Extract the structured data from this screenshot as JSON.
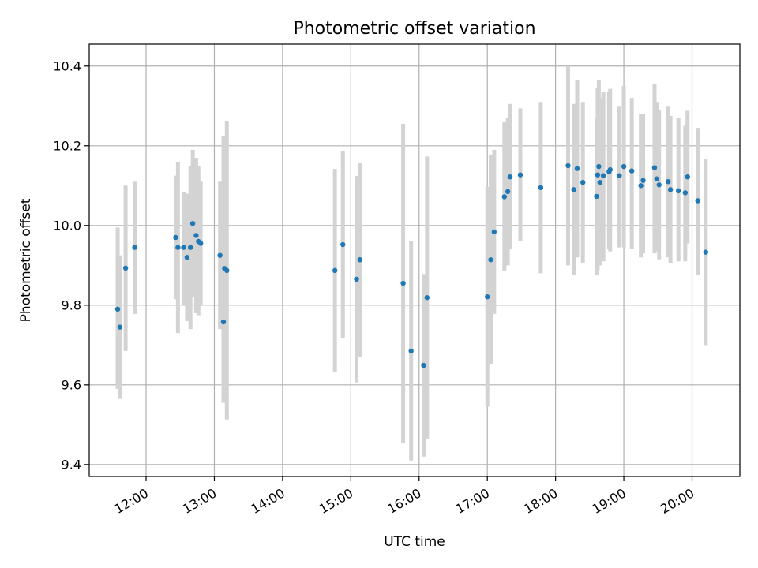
{
  "chart_data": {
    "type": "scatter",
    "title": "Photometric offset variation",
    "xlabel": "UTC time",
    "ylabel": "Photometric offset",
    "x_unit": "UTC time of day (HH:MM)",
    "xlim": [
      "11:10",
      "20:42"
    ],
    "ylim": [
      9.37,
      10.455
    ],
    "x_ticks": [
      "12:00",
      "13:00",
      "14:00",
      "15:00",
      "16:00",
      "17:00",
      "18:00",
      "19:00",
      "20:00"
    ],
    "y_ticks": [
      9.4,
      9.6,
      9.8,
      10.0,
      10.2,
      10.4
    ],
    "y_tick_labels": [
      "9.4",
      "9.6",
      "9.8",
      "10.0",
      "10.2",
      "10.4"
    ],
    "grid": true,
    "colors": {
      "points": "#1f77b4",
      "error_bars": "#d3d3d3",
      "grid": "#b0b0b0"
    },
    "series": [
      {
        "marker": "dot",
        "points": [
          {
            "x": "11:35",
            "y": 9.79,
            "ylow": 9.59,
            "yhigh": 9.995
          },
          {
            "x": "11:37",
            "y": 9.745,
            "ylow": 9.565,
            "yhigh": 9.925
          },
          {
            "x": "11:42",
            "y": 9.893,
            "ylow": 9.685,
            "yhigh": 10.1
          },
          {
            "x": "11:50",
            "y": 9.945,
            "ylow": 9.778,
            "yhigh": 10.11
          },
          {
            "x": "12:26",
            "y": 9.97,
            "ylow": 9.815,
            "yhigh": 10.125
          },
          {
            "x": "12:28",
            "y": 9.945,
            "ylow": 9.73,
            "yhigh": 10.16
          },
          {
            "x": "12:33",
            "y": 9.945,
            "ylow": 9.8,
            "yhigh": 10.085
          },
          {
            "x": "12:36",
            "y": 9.92,
            "ylow": 9.76,
            "yhigh": 10.08
          },
          {
            "x": "12:39",
            "y": 9.945,
            "ylow": 9.74,
            "yhigh": 10.15
          },
          {
            "x": "12:41",
            "y": 10.005,
            "ylow": 9.82,
            "yhigh": 10.19
          },
          {
            "x": "12:44",
            "y": 9.975,
            "ylow": 9.78,
            "yhigh": 10.17
          },
          {
            "x": "12:46",
            "y": 9.96,
            "ylow": 9.775,
            "yhigh": 10.15
          },
          {
            "x": "12:48",
            "y": 9.955,
            "ylow": 9.8,
            "yhigh": 10.11
          },
          {
            "x": "13:05",
            "y": 9.925,
            "ylow": 9.74,
            "yhigh": 10.11
          },
          {
            "x": "13:08",
            "y": 9.758,
            "ylow": 9.555,
            "yhigh": 10.225
          },
          {
            "x": "13:09",
            "y": 9.892,
            "ylow": 9.565,
            "yhigh": 10.22
          },
          {
            "x": "13:11",
            "y": 9.887,
            "ylow": 9.513,
            "yhigh": 10.262
          },
          {
            "x": "14:46",
            "y": 9.887,
            "ylow": 9.632,
            "yhigh": 10.142
          },
          {
            "x": "14:53",
            "y": 9.952,
            "ylow": 9.718,
            "yhigh": 10.186
          },
          {
            "x": "15:05",
            "y": 9.865,
            "ylow": 9.606,
            "yhigh": 10.124
          },
          {
            "x": "15:08",
            "y": 9.914,
            "ylow": 9.67,
            "yhigh": 10.158
          },
          {
            "x": "15:46",
            "y": 9.855,
            "ylow": 9.455,
            "yhigh": 10.255
          },
          {
            "x": "15:53",
            "y": 9.685,
            "ylow": 9.41,
            "yhigh": 9.96
          },
          {
            "x": "16:04",
            "y": 9.649,
            "ylow": 9.42,
            "yhigh": 9.878
          },
          {
            "x": "16:07",
            "y": 9.819,
            "ylow": 9.465,
            "yhigh": 10.173
          },
          {
            "x": "17:00",
            "y": 9.821,
            "ylow": 9.545,
            "yhigh": 10.097
          },
          {
            "x": "17:03",
            "y": 9.914,
            "ylow": 9.652,
            "yhigh": 10.176
          },
          {
            "x": "17:06",
            "y": 9.984,
            "ylow": 9.778,
            "yhigh": 10.19
          },
          {
            "x": "17:15",
            "y": 10.072,
            "ylow": 9.885,
            "yhigh": 10.259
          },
          {
            "x": "17:18",
            "y": 10.085,
            "ylow": 9.9,
            "yhigh": 10.27
          },
          {
            "x": "17:20",
            "y": 10.122,
            "ylow": 9.94,
            "yhigh": 10.305
          },
          {
            "x": "17:29",
            "y": 10.127,
            "ylow": 9.96,
            "yhigh": 10.294
          },
          {
            "x": "17:47",
            "y": 10.095,
            "ylow": 9.88,
            "yhigh": 10.31
          },
          {
            "x": "18:11",
            "y": 10.15,
            "ylow": 9.9,
            "yhigh": 10.4
          },
          {
            "x": "18:16",
            "y": 10.09,
            "ylow": 9.875,
            "yhigh": 10.305
          },
          {
            "x": "18:19",
            "y": 10.143,
            "ylow": 9.92,
            "yhigh": 10.366
          },
          {
            "x": "18:24",
            "y": 10.108,
            "ylow": 9.906,
            "yhigh": 10.31
          },
          {
            "x": "18:36",
            "y": 10.073,
            "ylow": 9.875,
            "yhigh": 10.271
          },
          {
            "x": "18:37",
            "y": 10.127,
            "ylow": 9.888,
            "yhigh": 10.345
          },
          {
            "x": "18:38",
            "y": 10.148,
            "ylow": 9.93,
            "yhigh": 10.365
          },
          {
            "x": "18:39",
            "y": 10.108,
            "ylow": 9.9,
            "yhigh": 10.32
          },
          {
            "x": "18:42",
            "y": 10.125,
            "ylow": 9.91,
            "yhigh": 10.335
          },
          {
            "x": "18:47",
            "y": 10.135,
            "ylow": 9.94,
            "yhigh": 10.335
          },
          {
            "x": "18:48",
            "y": 10.14,
            "ylow": 9.935,
            "yhigh": 10.343
          },
          {
            "x": "18:56",
            "y": 10.125,
            "ylow": 9.945,
            "yhigh": 10.3
          },
          {
            "x": "19:00",
            "y": 10.148,
            "ylow": 9.945,
            "yhigh": 10.35
          },
          {
            "x": "19:07",
            "y": 10.137,
            "ylow": 9.942,
            "yhigh": 10.32
          },
          {
            "x": "19:15",
            "y": 10.1,
            "ylow": 9.92,
            "yhigh": 10.28
          },
          {
            "x": "19:17",
            "y": 10.113,
            "ylow": 9.93,
            "yhigh": 10.28
          },
          {
            "x": "19:27",
            "y": 10.145,
            "ylow": 9.93,
            "yhigh": 10.355
          },
          {
            "x": "19:29",
            "y": 10.117,
            "ylow": 9.935,
            "yhigh": 10.31
          },
          {
            "x": "19:31",
            "y": 10.102,
            "ylow": 9.915,
            "yhigh": 10.29
          },
          {
            "x": "19:39",
            "y": 10.11,
            "ylow": 9.92,
            "yhigh": 10.3
          },
          {
            "x": "19:41",
            "y": 10.09,
            "ylow": 9.905,
            "yhigh": 10.275
          },
          {
            "x": "19:48",
            "y": 10.087,
            "ylow": 9.91,
            "yhigh": 10.27
          },
          {
            "x": "19:54",
            "y": 10.082,
            "ylow": 9.91,
            "yhigh": 10.25
          },
          {
            "x": "19:56",
            "y": 10.122,
            "ylow": 9.955,
            "yhigh": 10.288
          },
          {
            "x": "20:05",
            "y": 10.062,
            "ylow": 9.876,
            "yhigh": 10.245
          },
          {
            "x": "20:12",
            "y": 9.933,
            "ylow": 9.7,
            "yhigh": 10.168
          }
        ]
      }
    ]
  }
}
